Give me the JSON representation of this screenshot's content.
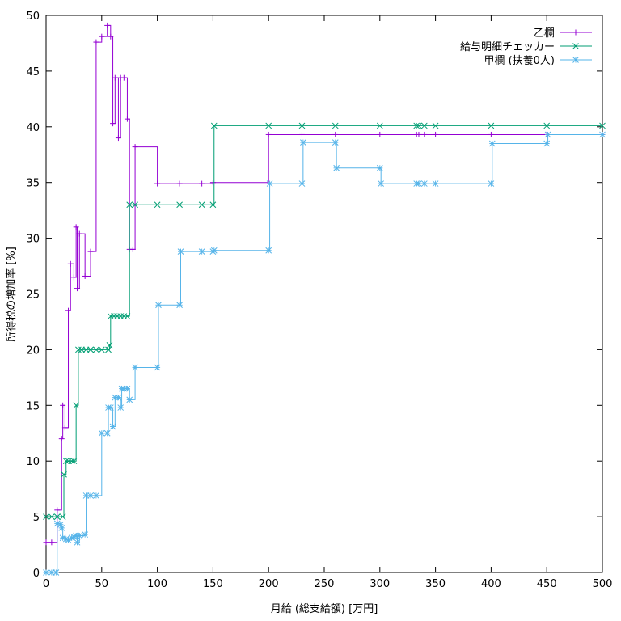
{
  "chart_data": {
    "type": "line",
    "xlabel": "月給 (総支給額) [万円]",
    "ylabel": "所得税の増加率 [%]",
    "xlim": [
      0,
      500
    ],
    "ylim": [
      0,
      50
    ],
    "xticks": [
      0,
      50,
      100,
      150,
      200,
      250,
      300,
      350,
      400,
      450,
      500
    ],
    "yticks": [
      0,
      5,
      10,
      15,
      20,
      25,
      30,
      35,
      40,
      45,
      50
    ],
    "grid": false,
    "legend_position": "top-right",
    "line_style": "step",
    "series": [
      {
        "name": "乙欄",
        "color": "#9400d3",
        "marker": "plus",
        "points": [
          [
            0,
            2.7
          ],
          [
            5,
            2.7
          ],
          [
            10,
            5.6
          ],
          [
            14,
            12.0
          ],
          [
            15,
            15.0
          ],
          [
            17,
            13.0
          ],
          [
            20,
            23.5
          ],
          [
            22,
            27.7
          ],
          [
            25,
            26.5
          ],
          [
            27,
            31.0
          ],
          [
            28,
            25.5
          ],
          [
            30,
            30.4
          ],
          [
            35,
            26.6
          ],
          [
            40,
            28.8
          ],
          [
            45,
            47.6
          ],
          [
            50,
            48.1
          ],
          [
            55,
            49.1
          ],
          [
            58,
            48.1
          ],
          [
            60,
            40.3
          ],
          [
            62,
            44.4
          ],
          [
            65,
            39.0
          ],
          [
            67,
            44.4
          ],
          [
            70,
            44.4
          ],
          [
            73,
            40.7
          ],
          [
            75,
            29.0
          ],
          [
            78,
            29.0
          ],
          [
            80,
            38.2
          ],
          [
            100,
            34.9
          ],
          [
            120,
            34.9
          ],
          [
            140,
            34.9
          ],
          [
            150,
            35.0
          ],
          [
            200,
            39.3
          ],
          [
            230,
            39.3
          ],
          [
            260,
            39.3
          ],
          [
            300,
            39.3
          ],
          [
            333,
            39.3
          ],
          [
            335,
            39.3
          ],
          [
            340,
            39.3
          ],
          [
            350,
            39.3
          ],
          [
            400,
            39.3
          ],
          [
            450,
            39.3
          ],
          [
            500,
            39.3
          ]
        ]
      },
      {
        "name": "給与明細チェッカー",
        "color": "#009e73",
        "marker": "cross",
        "points": [
          [
            0,
            5.0
          ],
          [
            5,
            5.0
          ],
          [
            10,
            5.0
          ],
          [
            15,
            5.0
          ],
          [
            16,
            8.8
          ],
          [
            18,
            10.0
          ],
          [
            20,
            10.0
          ],
          [
            23,
            10.0
          ],
          [
            25,
            10.0
          ],
          [
            27,
            15.0
          ],
          [
            29,
            20.0
          ],
          [
            32,
            20.0
          ],
          [
            36,
            20.0
          ],
          [
            40,
            20.0
          ],
          [
            45,
            20.0
          ],
          [
            50,
            20.0
          ],
          [
            56,
            20.0
          ],
          [
            57,
            20.4
          ],
          [
            58,
            23.0
          ],
          [
            61,
            23.0
          ],
          [
            64,
            23.0
          ],
          [
            67,
            23.0
          ],
          [
            70,
            23.0
          ],
          [
            73,
            23.0
          ],
          [
            75,
            33.0
          ],
          [
            80,
            33.0
          ],
          [
            100,
            33.0
          ],
          [
            120,
            33.0
          ],
          [
            140,
            33.0
          ],
          [
            150,
            33.0
          ],
          [
            151,
            40.1
          ],
          [
            200,
            40.1
          ],
          [
            230,
            40.1
          ],
          [
            260,
            40.1
          ],
          [
            300,
            40.1
          ],
          [
            333,
            40.1
          ],
          [
            335,
            40.1
          ],
          [
            340,
            40.1
          ],
          [
            350,
            40.1
          ],
          [
            400,
            40.1
          ],
          [
            450,
            40.1
          ],
          [
            500,
            40.1
          ]
        ]
      },
      {
        "name": "甲欄 (扶養0人)",
        "color": "#56b4e9",
        "marker": "star",
        "points": [
          [
            0,
            0.0
          ],
          [
            5,
            0.0
          ],
          [
            9,
            0.0
          ],
          [
            10,
            4.4
          ],
          [
            13,
            4.3
          ],
          [
            14,
            4.0
          ],
          [
            15,
            3.1
          ],
          [
            18,
            3.0
          ],
          [
            20,
            2.9
          ],
          [
            23,
            3.1
          ],
          [
            25,
            3.2
          ],
          [
            27,
            3.3
          ],
          [
            28,
            2.7
          ],
          [
            30,
            3.3
          ],
          [
            35,
            3.4
          ],
          [
            36,
            6.9
          ],
          [
            40,
            6.9
          ],
          [
            45,
            6.9
          ],
          [
            50,
            12.5
          ],
          [
            55,
            12.5
          ],
          [
            56,
            14.8
          ],
          [
            58,
            14.8
          ],
          [
            60,
            13.1
          ],
          [
            62,
            15.7
          ],
          [
            65,
            15.7
          ],
          [
            67,
            14.8
          ],
          [
            68,
            16.5
          ],
          [
            70,
            16.5
          ],
          [
            73,
            16.5
          ],
          [
            75,
            15.5
          ],
          [
            80,
            18.4
          ],
          [
            100,
            18.4
          ],
          [
            101,
            24.0
          ],
          [
            120,
            24.0
          ],
          [
            121,
            28.8
          ],
          [
            140,
            28.8
          ],
          [
            150,
            28.8
          ],
          [
            151,
            28.9
          ],
          [
            200,
            28.9
          ],
          [
            201,
            34.9
          ],
          [
            230,
            34.9
          ],
          [
            231,
            38.6
          ],
          [
            260,
            38.6
          ],
          [
            261,
            36.3
          ],
          [
            300,
            36.3
          ],
          [
            301,
            34.9
          ],
          [
            333,
            34.9
          ],
          [
            335,
            34.9
          ],
          [
            340,
            34.9
          ],
          [
            350,
            34.9
          ],
          [
            400,
            34.9
          ],
          [
            401,
            38.5
          ],
          [
            450,
            38.5
          ],
          [
            451,
            39.3
          ],
          [
            500,
            39.3
          ]
        ]
      }
    ]
  }
}
